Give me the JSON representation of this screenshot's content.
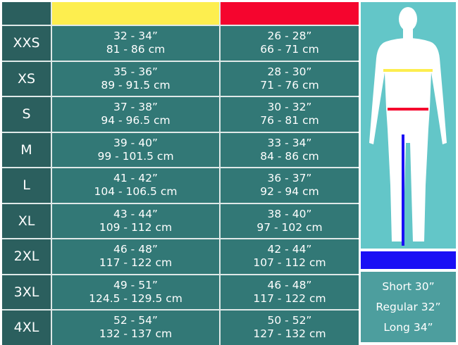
{
  "colors": {
    "chest": "#fdee4f",
    "waist": "#f5052e",
    "inseam": "#1a0ff5"
  },
  "rows": [
    {
      "size": "XXS",
      "chest_in": "32 - 34”",
      "chest_cm": "81 - 86 cm",
      "waist_in": "26 - 28”",
      "waist_cm": "66 - 71 cm"
    },
    {
      "size": "XS",
      "chest_in": "35 - 36”",
      "chest_cm": "89 - 91.5 cm",
      "waist_in": "28 - 30”",
      "waist_cm": "71 - 76 cm"
    },
    {
      "size": "S",
      "chest_in": "37 - 38”",
      "chest_cm": "94 - 96.5 cm",
      "waist_in": "30 - 32”",
      "waist_cm": "76 - 81 cm"
    },
    {
      "size": "M",
      "chest_in": "39 - 40”",
      "chest_cm": "99 - 101.5 cm",
      "waist_in": "33 - 34”",
      "waist_cm": "84 - 86 cm"
    },
    {
      "size": "L",
      "chest_in": "41 - 42”",
      "chest_cm": "104 - 106.5 cm",
      "waist_in": "36 - 37”",
      "waist_cm": "92 - 94 cm"
    },
    {
      "size": "XL",
      "chest_in": "43 - 44”",
      "chest_cm": "109 - 112 cm",
      "waist_in": "38 - 40”",
      "waist_cm": "97 - 102 cm"
    },
    {
      "size": "2XL",
      "chest_in": "46 - 48”",
      "chest_cm": "117 - 122 cm",
      "waist_in": "42 - 44”",
      "waist_cm": "107 - 112 cm"
    },
    {
      "size": "3XL",
      "chest_in": "49 - 51”",
      "chest_cm": "124.5 - 129.5 cm",
      "waist_in": "46 - 48”",
      "waist_cm": "117 - 122 cm"
    },
    {
      "size": "4XL",
      "chest_in": "52 - 54”",
      "chest_cm": "132 - 137 cm",
      "waist_in": "50 - 52”",
      "waist_cm": "127 - 132 cm"
    }
  ],
  "inseam": [
    "Short 30”",
    "Regular 32”",
    "Long 34”"
  ]
}
